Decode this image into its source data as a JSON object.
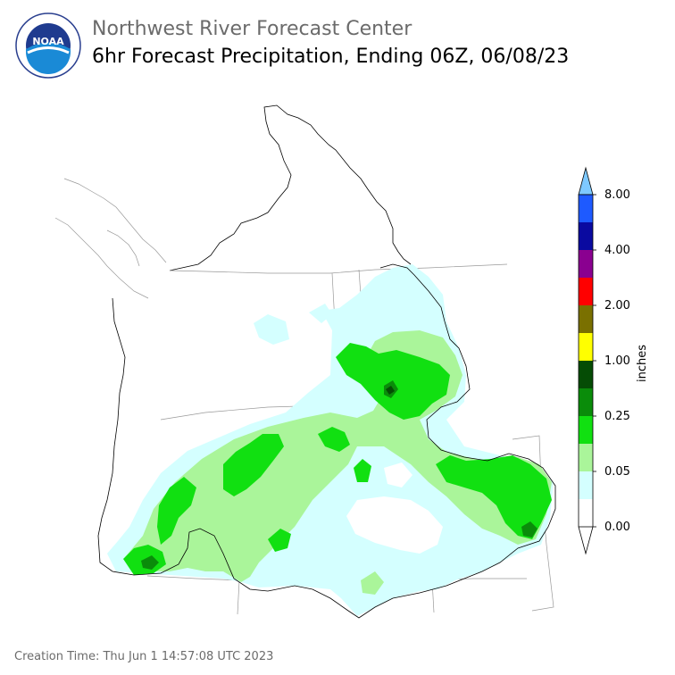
{
  "header": {
    "title": "Northwest River Forecast Center",
    "subtitle": "6hr Forecast Precipitation, Ending 06Z, 06/08/23"
  },
  "logo": {
    "text": "NOAA"
  },
  "legend": {
    "units": "inches",
    "ticks": [
      "8.00",
      "4.00",
      "2.00",
      "1.00",
      "0.25",
      "0.05",
      "0.00"
    ],
    "colors": [
      "#7ec9ff",
      "#1e5aff",
      "#0a0aa0",
      "#8a0090",
      "#ff0000",
      "#7a7000",
      "#ffff00",
      "#054c05",
      "#0a8c0a",
      "#11e011",
      "#aaf59a",
      "#d4ffff",
      "#ffffff"
    ]
  },
  "precip_colors": {
    "trace": "#d4ffff",
    "light": "#aaf59a",
    "moderate": "#11e011",
    "heavy": "#0a8c0a",
    "very_heavy": "#054c05"
  },
  "footer": {
    "creation_time": "Creation Time: Thu Jun 1 14:57:08 UTC 2023"
  }
}
